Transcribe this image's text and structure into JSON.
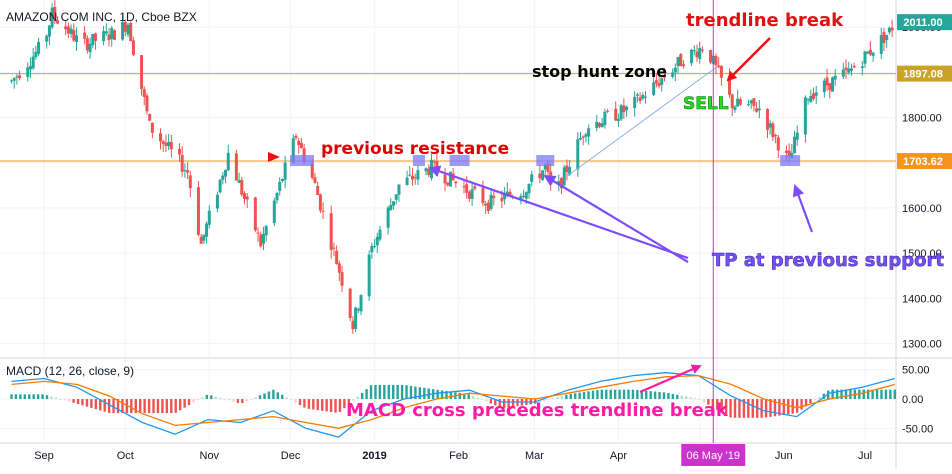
{
  "header": {
    "symbol_title": "AMAZON COM INC, 1D, Cboe BZX"
  },
  "macd_panel": {
    "title": "MACD (12, 26, close, 9)"
  },
  "annotations": {
    "trendline_break": "trendline break",
    "stop_hunt_zone": "stop hunt zone",
    "sell": "SELL",
    "previous_resistance": "previous resistance",
    "tp_previous_support": "TP at previous support",
    "macd_cross": "MACD cross precedes trendline break"
  },
  "price_tags": [
    "2011.00",
    "1897.08",
    "1703.62"
  ],
  "crosshair_date": "06 May '19",
  "colors": {
    "up": "#26a69a",
    "down": "#ef5350",
    "level_green": "#9bba59",
    "level_orange": "#f7941d",
    "crosshair": "#cc33cc",
    "macd_line": "#2196f3",
    "signal_line": "#f57c00",
    "arrow_red": "#ee1111",
    "arrow_purple": "#7c4dff",
    "zone_blue": "#7b7bf5"
  },
  "chart_data": [
    {
      "type": "candlestick",
      "title": "AMAZON COM INC, 1D, Cboe BZX",
      "x_ticks": [
        "Sep",
        "Oct",
        "Nov",
        "Dec",
        "2019",
        "Feb",
        "Mar",
        "Apr",
        "May",
        "Jun",
        "Jul"
      ],
      "y_ticks": [
        1300.0,
        1400.0,
        1500.0,
        1600.0,
        1700.0,
        1800.0,
        1900.0,
        2000.0
      ],
      "ylim": [
        1270,
        2060
      ],
      "horizontal_levels": [
        {
          "value": 1897.08,
          "color": "level_green"
        },
        {
          "value": 1703.62,
          "color": "level_orange"
        }
      ],
      "last_price": 2011.0,
      "crosshair_x": "06 May '19",
      "approx_closes": [
        {
          "date": "Aug 20",
          "close": 1880
        },
        {
          "date": "Sep 1",
          "close": 1965
        },
        {
          "date": "Sep 4",
          "close": 2030
        },
        {
          "date": "Sep 15",
          "close": 1960
        },
        {
          "date": "Sep 28",
          "close": 1990
        },
        {
          "date": "Oct 2",
          "close": 2010
        },
        {
          "date": "Oct 10",
          "close": 1780
        },
        {
          "date": "Oct 24",
          "close": 1680
        },
        {
          "date": "Oct 29",
          "close": 1520
        },
        {
          "date": "Nov 8",
          "close": 1720
        },
        {
          "date": "Nov 20",
          "close": 1520
        },
        {
          "date": "Dec 3",
          "close": 1760
        },
        {
          "date": "Dec 10",
          "close": 1650
        },
        {
          "date": "Dec 20",
          "close": 1440
        },
        {
          "date": "Dec 24",
          "close": 1340
        },
        {
          "date": "Dec 31",
          "close": 1510
        },
        {
          "date": "Jan 10",
          "close": 1650
        },
        {
          "date": "Jan 22",
          "close": 1690
        },
        {
          "date": "Feb 4",
          "close": 1640
        },
        {
          "date": "Feb 12",
          "close": 1610
        },
        {
          "date": "Feb 25",
          "close": 1640
        },
        {
          "date": "Mar 5",
          "close": 1690
        },
        {
          "date": "Mar 8",
          "close": 1620
        },
        {
          "date": "Mar 20",
          "close": 1780
        },
        {
          "date": "Apr 5",
          "close": 1820
        },
        {
          "date": "Apr 25",
          "close": 1930
        },
        {
          "date": "May 3",
          "close": 1960
        },
        {
          "date": "May 13",
          "close": 1830
        },
        {
          "date": "May 23",
          "close": 1820
        },
        {
          "date": "Jun 3",
          "close": 1700
        },
        {
          "date": "Jun 10",
          "close": 1850
        },
        {
          "date": "Jun 25",
          "close": 1900
        },
        {
          "date": "Jul 10",
          "close": 1990
        },
        {
          "date": "Jul 12",
          "close": 2011
        }
      ]
    },
    {
      "type": "line",
      "title": "MACD (12, 26, close, 9)",
      "y_ticks": [
        50.0,
        0.0,
        -50.0
      ],
      "ylim": [
        -75,
        70
      ],
      "series": [
        {
          "name": "MACD",
          "color": "macd_line"
        },
        {
          "name": "Signal",
          "color": "signal_line"
        }
      ],
      "approx_macd": [
        30,
        35,
        20,
        -10,
        -40,
        -60,
        -35,
        -40,
        -20,
        -50,
        -65,
        -20,
        0,
        10,
        15,
        -5,
        -5,
        15,
        30,
        40,
        45,
        40,
        5,
        -20,
        -30,
        10,
        20,
        35
      ],
      "approx_signal": [
        25,
        30,
        25,
        5,
        -25,
        -45,
        -40,
        -35,
        -30,
        -40,
        -50,
        -35,
        -15,
        0,
        10,
        5,
        0,
        10,
        20,
        30,
        38,
        40,
        25,
        0,
        -15,
        0,
        10,
        25
      ]
    }
  ]
}
